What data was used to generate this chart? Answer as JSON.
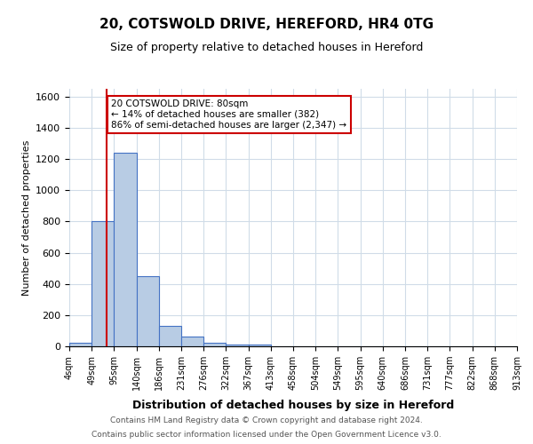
{
  "title1": "20, COTSWOLD DRIVE, HEREFORD, HR4 0TG",
  "title2": "Size of property relative to detached houses in Hereford",
  "xlabel": "Distribution of detached houses by size in Hereford",
  "ylabel": "Number of detached properties",
  "bin_labels": [
    "4sqm",
    "49sqm",
    "95sqm",
    "140sqm",
    "186sqm",
    "231sqm",
    "276sqm",
    "322sqm",
    "367sqm",
    "413sqm",
    "458sqm",
    "504sqm",
    "549sqm",
    "595sqm",
    "640sqm",
    "686sqm",
    "731sqm",
    "777sqm",
    "822sqm",
    "868sqm",
    "913sqm"
  ],
  "bar_values": [
    20,
    800,
    1240,
    450,
    130,
    65,
    22,
    12,
    12,
    0,
    0,
    0,
    0,
    0,
    0,
    0,
    0,
    0,
    0,
    0
  ],
  "ylim": [
    0,
    1650
  ],
  "yticks": [
    0,
    200,
    400,
    600,
    800,
    1000,
    1200,
    1400,
    1600
  ],
  "bar_color": "#b8cce4",
  "bar_edge_color": "#4472c4",
  "vline_color": "#cc0000",
  "annotation_text": "20 COTSWOLD DRIVE: 80sqm\n← 14% of detached houses are smaller (382)\n86% of semi-detached houses are larger (2,347) →",
  "annotation_box_color": "#ffffff",
  "annotation_box_edge": "#cc0000",
  "footer1": "Contains HM Land Registry data © Crown copyright and database right 2024.",
  "footer2": "Contains public sector information licensed under the Open Government Licence v3.0.",
  "bg_color": "#ffffff",
  "grid_color": "#d0dce8"
}
